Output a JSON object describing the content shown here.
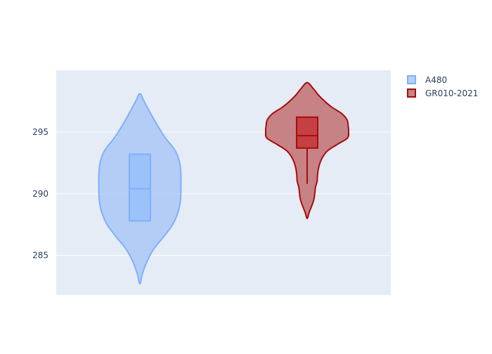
{
  "chart_data": {
    "type": "violin",
    "title": "",
    "xlabel": "",
    "ylabel": "",
    "ylim": [
      281.8,
      300.0
    ],
    "y_ticks": [
      285,
      290,
      295
    ],
    "grid": true,
    "legend_position": "top-right",
    "series": [
      {
        "name": "A480",
        "fill_color": "#aac8f7",
        "line_color": "#7eb0fb",
        "box_fill_color": "#99c1fa",
        "min": 282.7,
        "q1": 287.8,
        "median": 290.4,
        "q3": 293.2,
        "max": 298.1,
        "box_whisker": false,
        "density": [
          [
            282.7,
            0.0
          ],
          [
            283.5,
            0.06
          ],
          [
            284.5,
            0.17
          ],
          [
            285.5,
            0.33
          ],
          [
            286.5,
            0.57
          ],
          [
            287.5,
            0.79
          ],
          [
            288.5,
            0.92
          ],
          [
            289.5,
            0.98
          ],
          [
            290.5,
            0.99
          ],
          [
            291.5,
            0.99
          ],
          [
            292.5,
            0.96
          ],
          [
            293.5,
            0.85
          ],
          [
            294.5,
            0.62
          ],
          [
            295.5,
            0.43
          ],
          [
            296.5,
            0.26
          ],
          [
            297.5,
            0.1
          ],
          [
            298.1,
            0.0
          ]
        ]
      },
      {
        "name": "GR010-2021",
        "fill_color": "#c47c7e",
        "line_color": "#a90c0c",
        "box_fill_color": "#c43c40",
        "min": 290.8,
        "q1": 293.7,
        "median": 294.7,
        "q3": 296.2,
        "max": 299.0,
        "box_whisker": true,
        "density": [
          [
            288.0,
            0.0
          ],
          [
            288.5,
            0.05
          ],
          [
            289.5,
            0.16
          ],
          [
            290.5,
            0.2
          ],
          [
            291.0,
            0.24
          ],
          [
            291.5,
            0.25
          ],
          [
            292.0,
            0.27
          ],
          [
            292.5,
            0.31
          ],
          [
            293.0,
            0.38
          ],
          [
            293.5,
            0.5
          ],
          [
            294.0,
            0.73
          ],
          [
            294.5,
            0.97
          ],
          [
            295.0,
            1.0
          ],
          [
            295.5,
            0.99
          ],
          [
            296.0,
            0.96
          ],
          [
            296.5,
            0.83
          ],
          [
            297.0,
            0.6
          ],
          [
            297.5,
            0.42
          ],
          [
            298.0,
            0.27
          ],
          [
            298.5,
            0.15
          ],
          [
            299.0,
            0.0
          ]
        ]
      }
    ]
  }
}
